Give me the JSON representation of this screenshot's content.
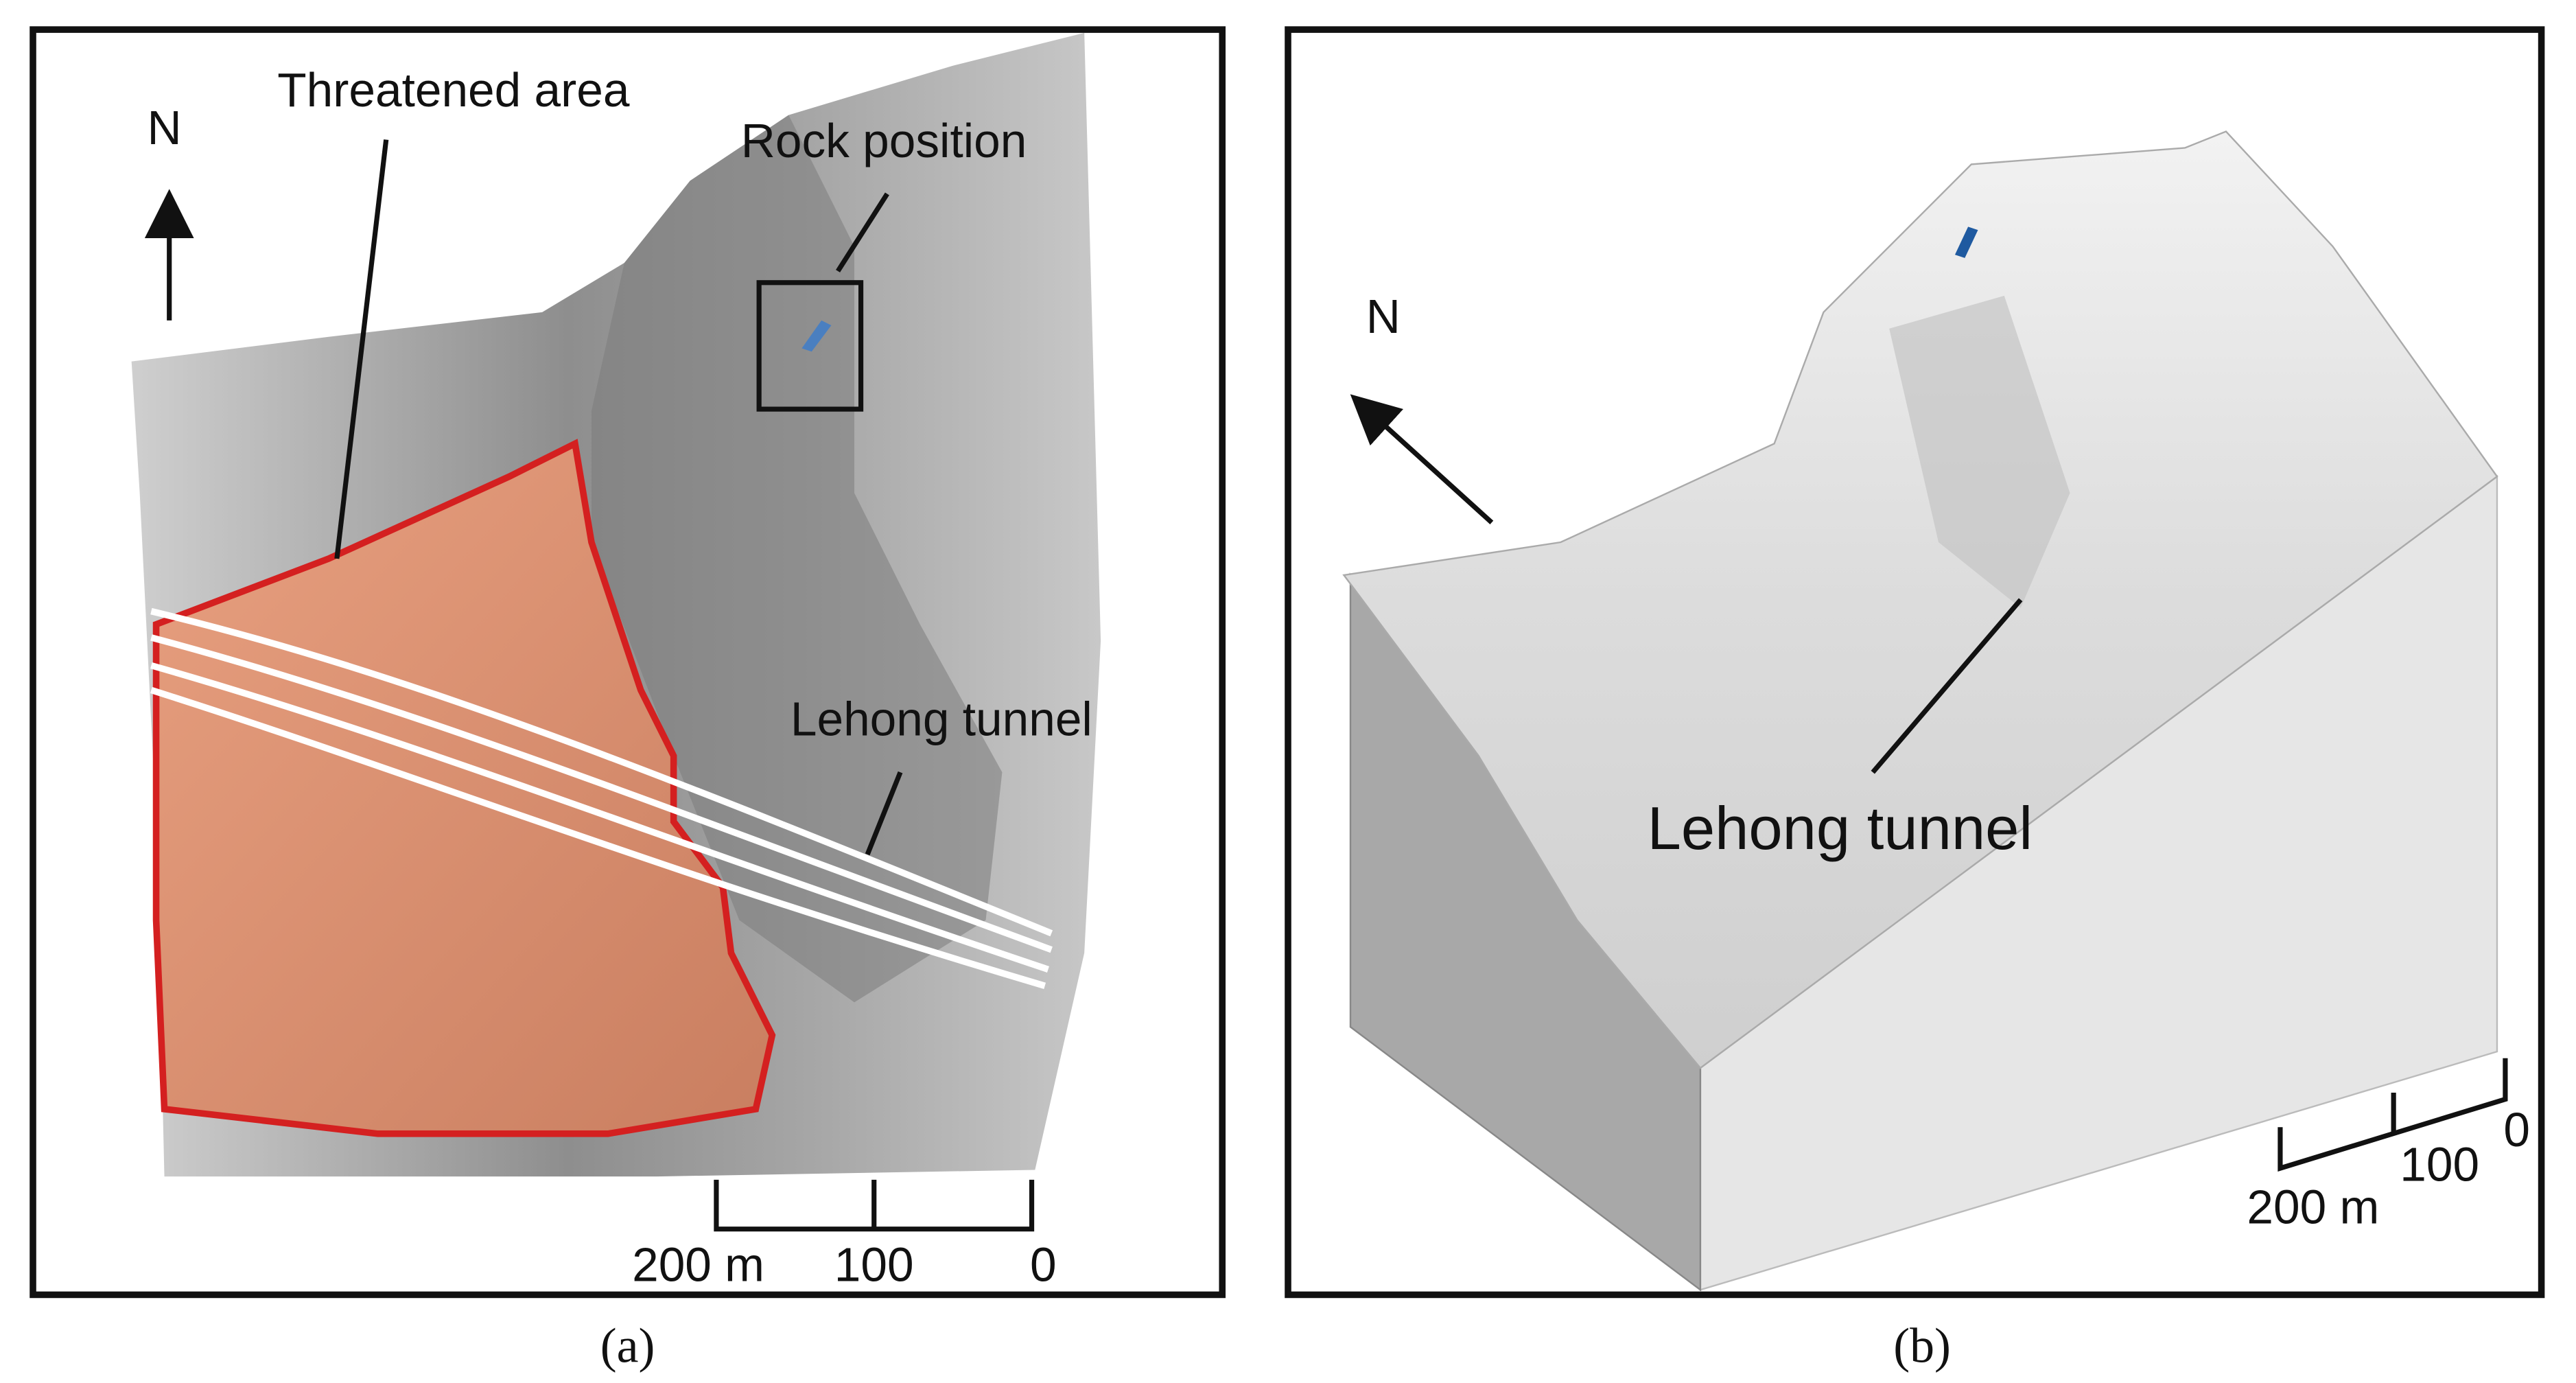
{
  "panel_a": {
    "threatened_label": "Threatened area",
    "rock_label": "Rock position",
    "north": "N",
    "tunnel_label": "Lehong tunnel",
    "scale_labels": [
      "200 m",
      "100",
      "0"
    ],
    "caption": "(a)"
  },
  "panel_b": {
    "north": "N",
    "tunnel_label": "Lehong tunnel",
    "scale_labels": [
      "200 m",
      "100",
      "0"
    ],
    "caption": "(b)"
  }
}
